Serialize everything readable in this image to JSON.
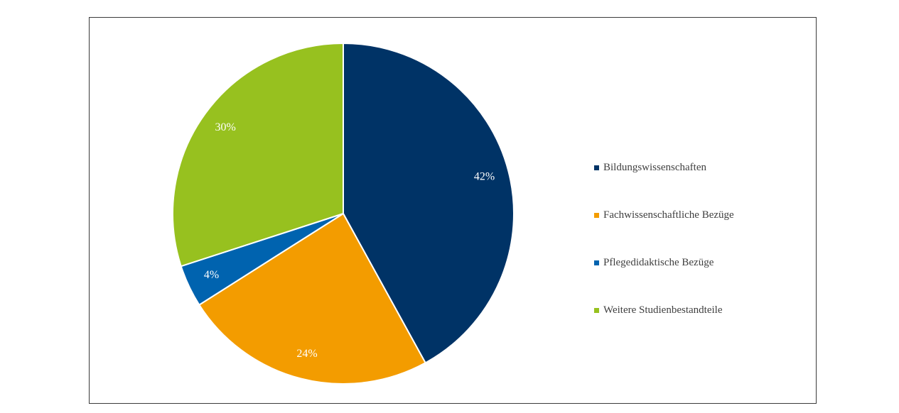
{
  "chart_data": {
    "type": "pie",
    "title": "",
    "slices": [
      {
        "label": "Bildungswissenschaften",
        "value": 42,
        "display": "42%",
        "color": "#003366"
      },
      {
        "label": "Fachwissenschaftliche Bezüge",
        "value": 24,
        "display": "24%",
        "color": "#F39C00"
      },
      {
        "label": "Pflegedidaktische Bezüge",
        "value": 4,
        "display": "4%",
        "color": "#0063AF"
      },
      {
        "label": "Weitere Studienbestandteile",
        "value": 30,
        "display": "30%",
        "color": "#97C11F"
      }
    ],
    "legend_position": "right",
    "start_angle": "12 o'clock",
    "direction": "clockwise"
  }
}
